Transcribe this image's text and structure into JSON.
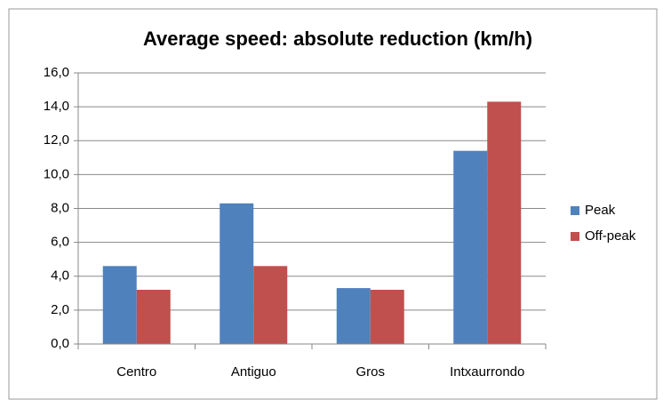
{
  "chart_data": {
    "type": "bar",
    "title": "Average speed: absolute reduction (km/h)",
    "categories": [
      "Centro",
      "Antiguo",
      "Gros",
      "Intxaurrondo"
    ],
    "series": [
      {
        "name": "Peak",
        "color": "#4f81bd",
        "values": [
          4.6,
          8.3,
          3.3,
          11.4
        ]
      },
      {
        "name": "Off-peak",
        "color": "#c0504d",
        "values": [
          3.2,
          4.6,
          3.2,
          14.3
        ]
      }
    ],
    "ylim": [
      0,
      16
    ],
    "yticks": [
      {
        "value": 0,
        "label": "0,0"
      },
      {
        "value": 2,
        "label": "2,0"
      },
      {
        "value": 4,
        "label": "4,0"
      },
      {
        "value": 6,
        "label": "6,0"
      },
      {
        "value": 8,
        "label": "8,0"
      },
      {
        "value": 10,
        "label": "10,0"
      },
      {
        "value": 12,
        "label": "12,0"
      },
      {
        "value": 14,
        "label": "14,0"
      },
      {
        "value": 16,
        "label": "16,0"
      }
    ],
    "grid": true,
    "legend": "right"
  }
}
